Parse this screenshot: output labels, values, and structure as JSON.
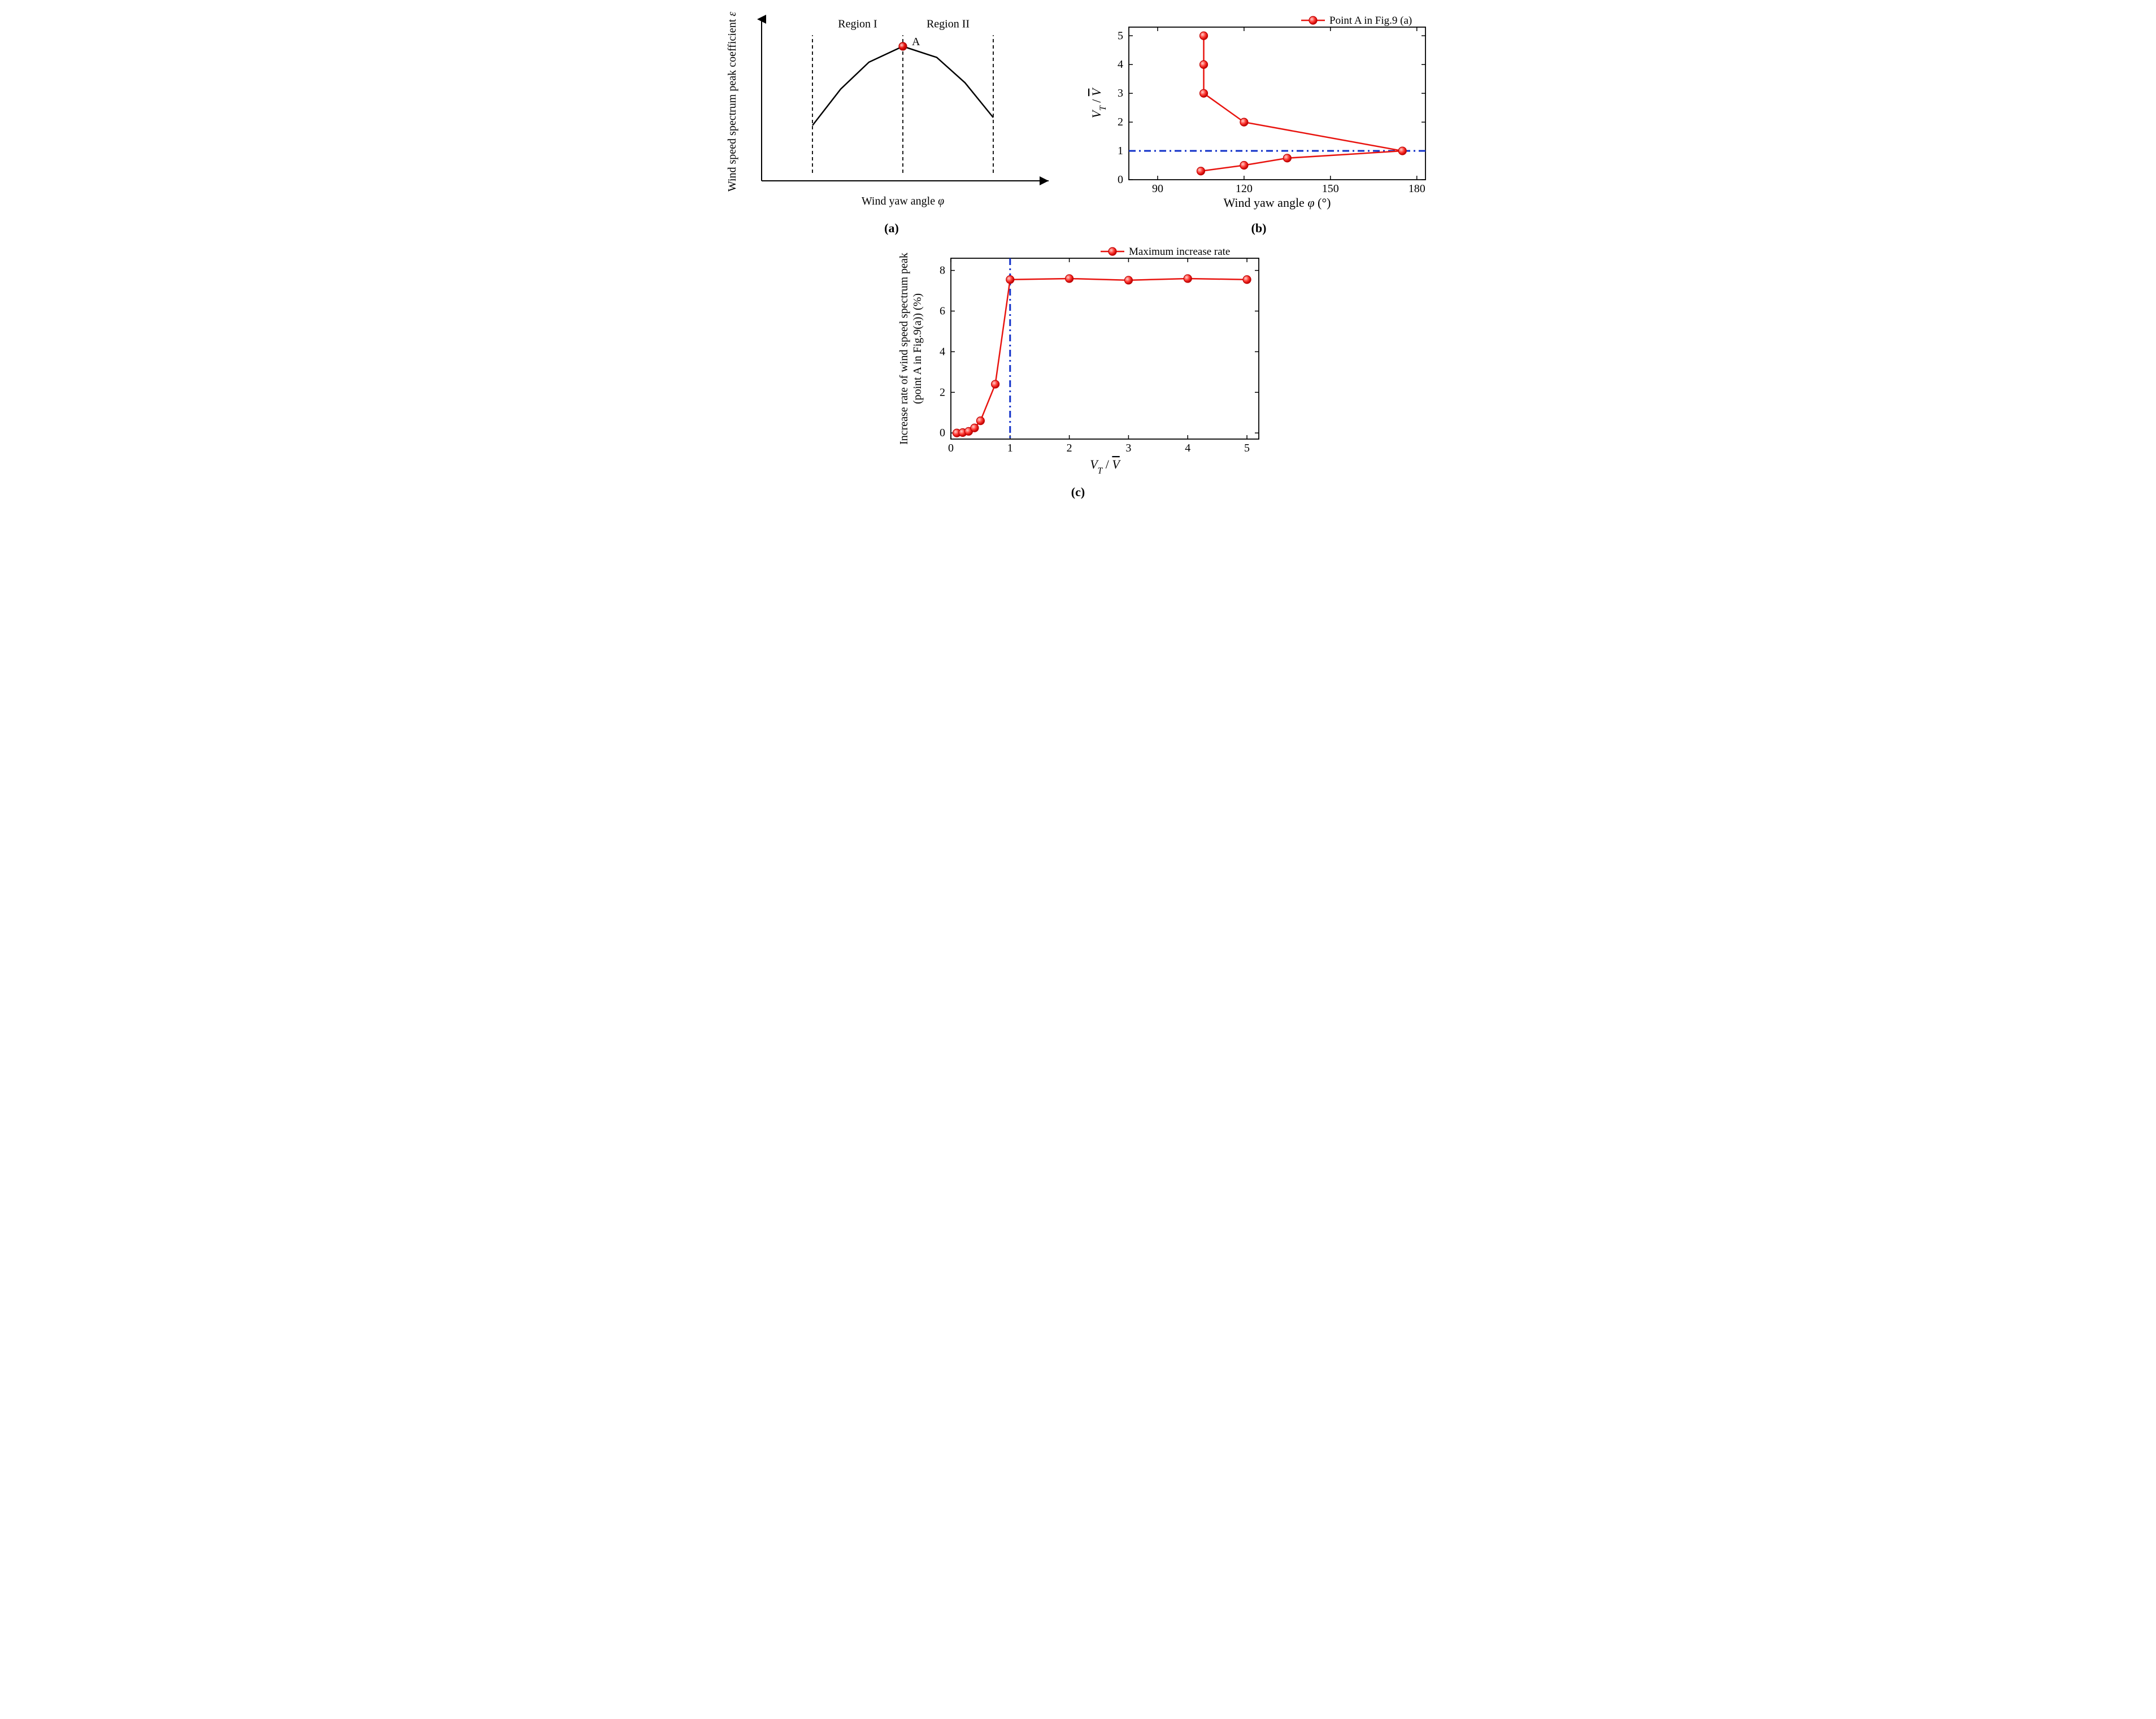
{
  "panel_a": {
    "type": "schematic-line",
    "subcaption": "(a)",
    "xlabel": "Wind yaw angle φ",
    "ylabel": "Wind speed spectrum peak coefficient ε",
    "region1_label": "Region I",
    "region2_label": "Region II",
    "point_label": "A",
    "curve_x": [
      0.18,
      0.28,
      0.38,
      0.5,
      0.62,
      0.72,
      0.82
    ],
    "curve_y": [
      0.35,
      0.58,
      0.75,
      0.85,
      0.78,
      0.62,
      0.4
    ],
    "vlines_x": [
      0.18,
      0.5,
      0.82
    ],
    "peak_x": 0.5,
    "peak_y": 0.85,
    "line_color": "#000000",
    "line_width": 2.5,
    "dash_color": "#000000",
    "dash_pattern": "6,5",
    "point_fill": "#e8140f",
    "point_stroke": "#b00000",
    "point_r": 7,
    "axis_color": "#000000",
    "label_fontsize": 20,
    "region_fontsize": 20,
    "background_color": "#ffffff"
  },
  "panel_b": {
    "type": "line-scatter",
    "subcaption": "(b)",
    "legend": "Point A in Fig.9 (a)",
    "xlabel": "Wind yaw angle φ (°)",
    "ylabel": "V_T / V̄",
    "ylabel_plain": "V",
    "x_values": [
      105,
      120,
      135,
      175,
      120,
      106,
      106,
      106
    ],
    "y_values": [
      0.3,
      0.5,
      0.75,
      1.0,
      2.0,
      3.0,
      4.0,
      5.0
    ],
    "xlim": [
      80,
      183
    ],
    "ylim": [
      0,
      5.3
    ],
    "xticks": [
      90,
      120,
      150,
      180
    ],
    "yticks": [
      0,
      1,
      2,
      3,
      4,
      5
    ],
    "hline_y": 1.0,
    "line_color": "#e8140f",
    "line_width": 2.5,
    "marker_fill": "#ff3a33",
    "marker_stroke": "#c00000",
    "marker_r": 7,
    "dashdot_color": "#1030c8",
    "dashdot_width": 3,
    "dashdot_pattern": "12,6,3,6",
    "axis_color": "#000000",
    "tick_fontsize": 20,
    "label_fontsize": 22,
    "legend_fontsize": 19,
    "background_color": "#ffffff"
  },
  "panel_c": {
    "type": "line-scatter",
    "subcaption": "(c)",
    "legend": "Maximum increase rate",
    "xlabel": "V_T / V̄",
    "ylabel_line1": "Increase rate of wind speed spectrum peak",
    "ylabel_line2": "(point A in Fig.9(a)) (%)",
    "x_values": [
      0.1,
      0.2,
      0.3,
      0.4,
      0.5,
      0.75,
      1.0,
      2.0,
      3.0,
      4.0,
      5.0
    ],
    "y_values": [
      0.0,
      0.02,
      0.08,
      0.25,
      0.6,
      2.4,
      7.55,
      7.6,
      7.52,
      7.6,
      7.55
    ],
    "xlim": [
      0,
      5.2
    ],
    "ylim": [
      -0.3,
      8.6
    ],
    "xticks": [
      0,
      1,
      2,
      3,
      4,
      5
    ],
    "yticks": [
      0,
      2,
      4,
      6,
      8
    ],
    "vline_x": 1.0,
    "line_color": "#e8140f",
    "line_width": 2.5,
    "marker_fill": "#ff3a33",
    "marker_stroke": "#c00000",
    "marker_r": 7,
    "dashdot_color": "#1030c8",
    "dashdot_width": 3,
    "dashdot_pattern": "12,6,3,6",
    "axis_color": "#000000",
    "tick_fontsize": 20,
    "label_fontsize": 22,
    "legend_fontsize": 19,
    "background_color": "#ffffff"
  }
}
